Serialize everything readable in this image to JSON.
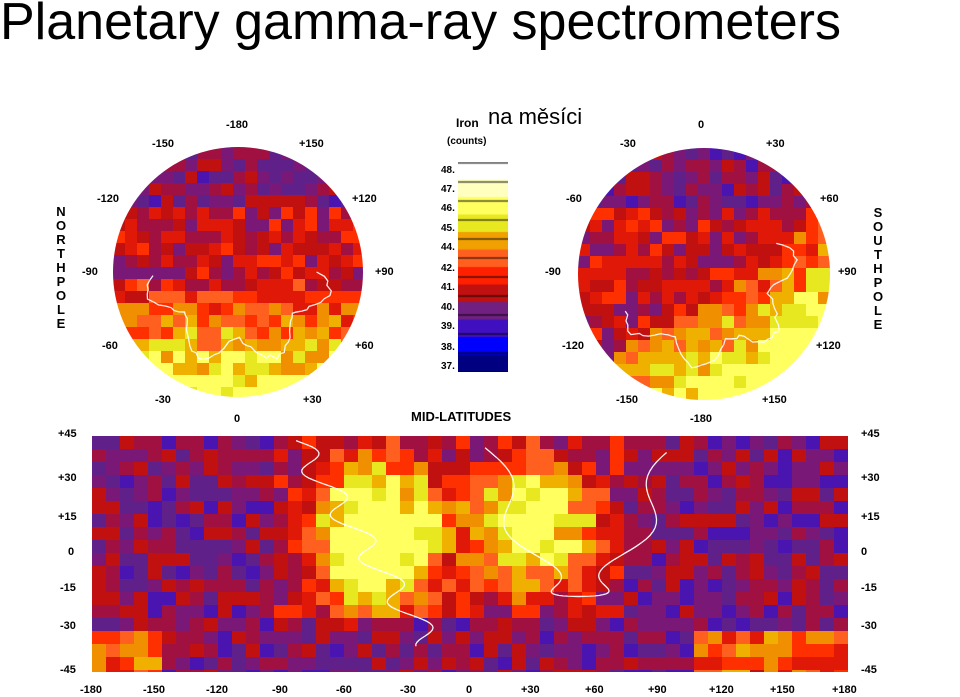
{
  "title": "Planetary gamma-ray spectrometers",
  "subtitle": "na měsíci",
  "figure": {
    "legend": {
      "title": "Iron",
      "unit": "(counts)",
      "levels": [
        "48.",
        "47.",
        "46.",
        "45.",
        "44.",
        "42.",
        "41.",
        "40.",
        "39.",
        "38.",
        "37."
      ],
      "colors": [
        "#ffffff",
        "#ffffc0",
        "#ffff60",
        "#e8e820",
        "#f0a000",
        "#ff6020",
        "#ff2000",
        "#c01010",
        "#702080",
        "#4010c0",
        "#0000ff",
        "#000080"
      ]
    },
    "north_pole": {
      "side_label": "NORTH POLE",
      "lon_labels": [
        "-180",
        "-150",
        "+150",
        "-120",
        "+120",
        "-90",
        "+90",
        "-60",
        "+60",
        "-30",
        "+30",
        "0"
      ]
    },
    "south_pole": {
      "side_label": "SOUTH POLE",
      "lon_labels": [
        "0",
        "-30",
        "+30",
        "-60",
        "+60",
        "-90",
        "+90",
        "-120",
        "+120",
        "-150",
        "+150",
        "-180"
      ]
    },
    "mid_latitudes": {
      "title": "MID-LATITUDES",
      "lat_labels": [
        "+45",
        "+30",
        "+15",
        "0",
        "-15",
        "-30",
        "-45"
      ],
      "lon_labels": [
        "-180",
        "-150",
        "-120",
        "-90",
        "-60",
        "-30",
        "0",
        "+30",
        "+60",
        "+90",
        "+120",
        "+150",
        "+180"
      ]
    }
  }
}
